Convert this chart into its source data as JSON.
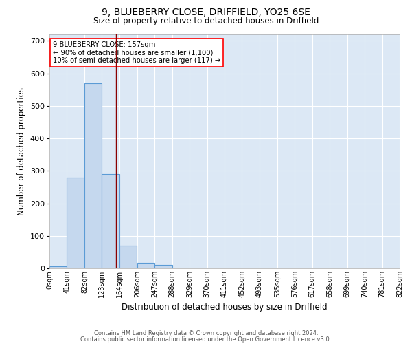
{
  "title1": "9, BLUEBERRY CLOSE, DRIFFIELD, YO25 6SE",
  "title2": "Size of property relative to detached houses in Driffield",
  "xlabel": "Distribution of detached houses by size in Driffield",
  "ylabel": "Number of detached properties",
  "footnote1": "Contains HM Land Registry data © Crown copyright and database right 2024.",
  "footnote2": "Contains public sector information licensed under the Open Government Licence v3.0.",
  "bin_edges": [
    0,
    41,
    82,
    123,
    164,
    206,
    247,
    288,
    329,
    370,
    411,
    452,
    493,
    535,
    576,
    617,
    658,
    699,
    740,
    781,
    822
  ],
  "bin_labels": [
    "0sqm",
    "41sqm",
    "82sqm",
    "123sqm",
    "164sqm",
    "206sqm",
    "247sqm",
    "288sqm",
    "329sqm",
    "370sqm",
    "411sqm",
    "452sqm",
    "493sqm",
    "535sqm",
    "576sqm",
    "617sqm",
    "658sqm",
    "699sqm",
    "740sqm",
    "781sqm",
    "822sqm"
  ],
  "bar_heights": [
    7,
    280,
    570,
    290,
    70,
    17,
    10,
    0,
    0,
    0,
    0,
    0,
    0,
    0,
    0,
    0,
    0,
    0,
    0,
    0
  ],
  "bar_color": "#c5d8ee",
  "bar_edge_color": "#5b9bd5",
  "background_color": "#dce8f5",
  "grid_color": "#ffffff",
  "red_line_x": 157,
  "ylim": [
    0,
    720
  ],
  "yticks": [
    0,
    100,
    200,
    300,
    400,
    500,
    600,
    700
  ],
  "annotation_title": "9 BLUEBERRY CLOSE: 157sqm",
  "annotation_line1": "← 90% of detached houses are smaller (1,100)",
  "annotation_line2": "10% of semi-detached houses are larger (117) →"
}
